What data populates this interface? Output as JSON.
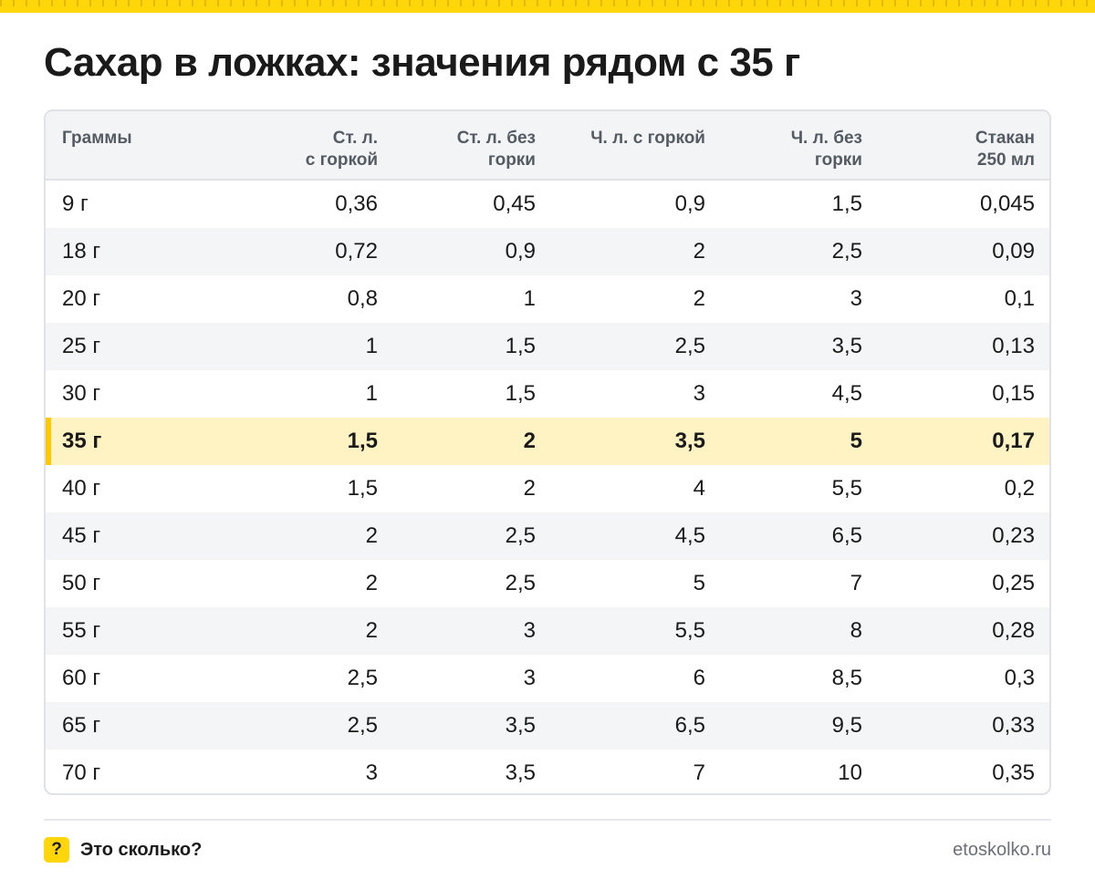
{
  "title": "Сахар в ложках: значения рядом с 35 г",
  "table": {
    "headers": [
      "Граммы",
      "Ст. л.\nс горкой",
      "Ст. л. без\nгорки",
      "Ч. л. с горкой",
      "Ч. л. без\nгорки",
      "Стакан\n250 мл"
    ],
    "rows": [
      [
        "9 г",
        "0,36",
        "0,45",
        "0,9",
        "1,5",
        "0,045"
      ],
      [
        "18 г",
        "0,72",
        "0,9",
        "2",
        "2,5",
        "0,09"
      ],
      [
        "20 г",
        "0,8",
        "1",
        "2",
        "3",
        "0,1"
      ],
      [
        "25 г",
        "1",
        "1,5",
        "2,5",
        "3,5",
        "0,13"
      ],
      [
        "30 г",
        "1",
        "1,5",
        "3",
        "4,5",
        "0,15"
      ],
      [
        "35 г",
        "1,5",
        "2",
        "3,5",
        "5",
        "0,17"
      ],
      [
        "40 г",
        "1,5",
        "2",
        "4",
        "5,5",
        "0,2"
      ],
      [
        "45 г",
        "2",
        "2,5",
        "4,5",
        "6,5",
        "0,23"
      ],
      [
        "50 г",
        "2",
        "2,5",
        "5",
        "7",
        "0,25"
      ],
      [
        "55 г",
        "2",
        "3",
        "5,5",
        "8",
        "0,28"
      ],
      [
        "60 г",
        "2,5",
        "3",
        "6",
        "8,5",
        "0,3"
      ],
      [
        "65 г",
        "2,5",
        "3,5",
        "6,5",
        "9,5",
        "0,33"
      ],
      [
        "70 г",
        "3",
        "3,5",
        "7",
        "10",
        "0,35"
      ]
    ],
    "highlight_row": 5
  },
  "colors": {
    "accent": "#ffd60a",
    "highlight": "#fff3c4"
  },
  "footer": {
    "badge": "?",
    "brand": "Это сколько?",
    "site": "etoskolko.ru"
  }
}
